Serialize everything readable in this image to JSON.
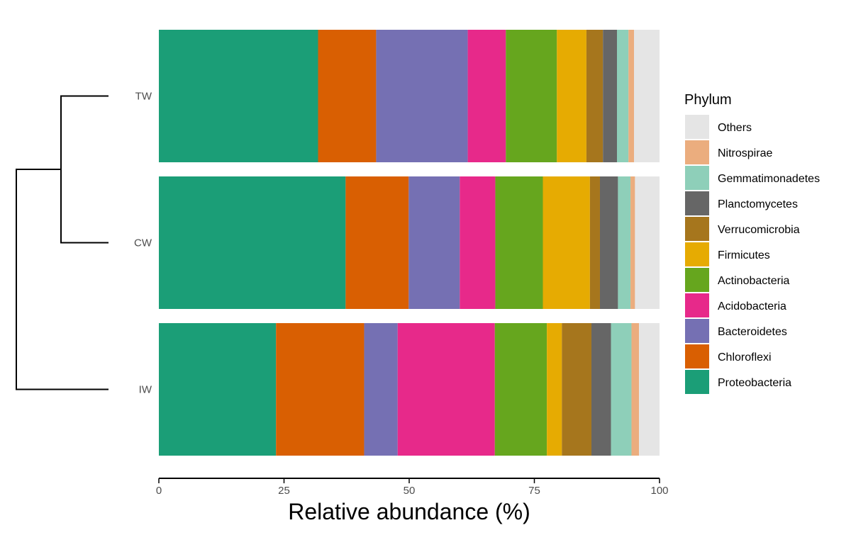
{
  "chart_data": {
    "type": "bar",
    "orientation": "horizontal",
    "stacked": true,
    "categories": [
      "TW",
      "CW",
      "IW"
    ],
    "xlabel": "Relative abundance (%)",
    "xlim": [
      0,
      100
    ],
    "x_ticks": [
      0,
      25,
      50,
      75,
      100
    ],
    "grid": false,
    "legend_title": "Phylum",
    "legend_position": "right",
    "dendrogram": "CW joins TW first; IW joins that cluster at the root",
    "series": [
      {
        "name": "Proteobacteria",
        "color": "#1b9e77",
        "values": [
          31.8,
          37.3,
          23.4
        ]
      },
      {
        "name": "Chloroflexi",
        "color": "#d95f02",
        "values": [
          11.6,
          12.6,
          17.6
        ]
      },
      {
        "name": "Bacteroidetes",
        "color": "#7570b3",
        "values": [
          18.3,
          10.2,
          6.7
        ]
      },
      {
        "name": "Acidobacteria",
        "color": "#e7298a",
        "values": [
          7.6,
          7.1,
          19.4
        ]
      },
      {
        "name": "Actinobacteria",
        "color": "#66a61e",
        "values": [
          10.2,
          9.5,
          10.4
        ]
      },
      {
        "name": "Firmicutes",
        "color": "#e6ab02",
        "values": [
          5.9,
          9.4,
          3.0
        ]
      },
      {
        "name": "Verrucomicrobia",
        "color": "#a6761d",
        "values": [
          3.3,
          2.0,
          5.9
        ]
      },
      {
        "name": "Planctomycetes",
        "color": "#666666",
        "values": [
          2.8,
          3.6,
          3.9
        ]
      },
      {
        "name": "Gemmatimonadetes",
        "color": "#8ecfb9",
        "values": [
          2.3,
          2.5,
          4.1
        ]
      },
      {
        "name": "Nitrospirae",
        "color": "#ebad7e",
        "values": [
          1.1,
          0.9,
          1.5
        ]
      },
      {
        "name": "Others",
        "color": "#e5e5e5",
        "values": [
          5.1,
          4.9,
          4.1
        ]
      }
    ],
    "legend_order": [
      "Others",
      "Nitrospirae",
      "Gemmatimonadetes",
      "Planctomycetes",
      "Verrucomicrobia",
      "Firmicutes",
      "Actinobacteria",
      "Acidobacteria",
      "Bacteroidetes",
      "Chloroflexi",
      "Proteobacteria"
    ]
  }
}
